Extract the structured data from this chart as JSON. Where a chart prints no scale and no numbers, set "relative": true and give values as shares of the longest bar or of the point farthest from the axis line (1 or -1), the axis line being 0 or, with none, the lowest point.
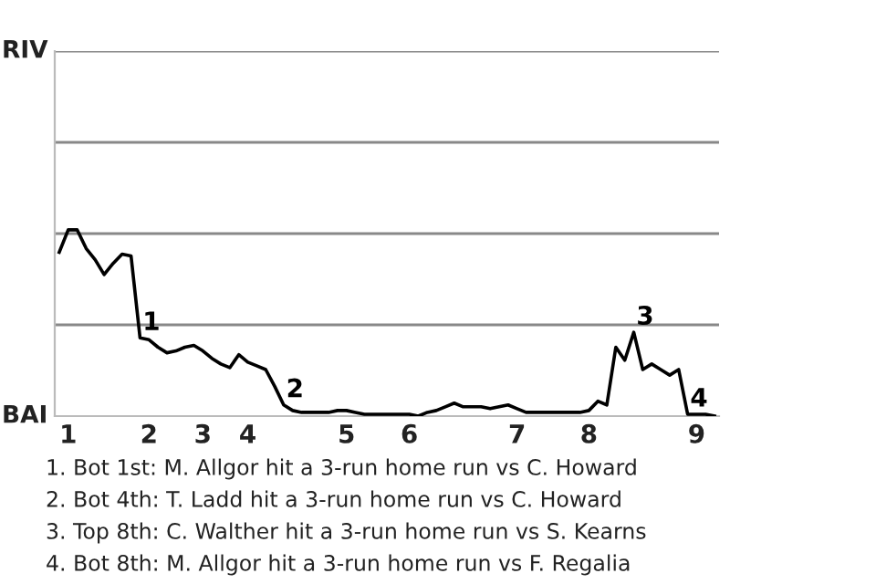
{
  "chart_data": {
    "type": "line",
    "relative": true,
    "categories": [
      null,
      "1",
      null,
      null,
      null,
      null,
      null,
      null,
      null,
      null,
      "2",
      null,
      null,
      null,
      null,
      null,
      "3",
      null,
      null,
      null,
      null,
      "4",
      null,
      null,
      null,
      null,
      null,
      null,
      null,
      null,
      null,
      null,
      "5",
      null,
      null,
      null,
      null,
      null,
      null,
      "6",
      null,
      null,
      null,
      null,
      null,
      null,
      null,
      null,
      null,
      null,
      null,
      "7",
      null,
      null,
      null,
      null,
      null,
      null,
      null,
      "8",
      null,
      null,
      null,
      null,
      null,
      null,
      null,
      null,
      null,
      null,
      null,
      "9",
      null,
      null
    ],
    "series": [
      {
        "color": "#000000",
        "values": [
          0.88,
          1,
          1,
          0.9,
          0.84,
          0.76,
          0.82,
          0.87,
          0.86,
          0.42,
          0.41,
          0.37,
          0.34,
          0.35,
          0.37,
          0.38,
          0.35,
          0.31,
          0.28,
          0.26,
          0.33,
          0.29,
          0.27,
          0.25,
          0.16,
          0.06,
          0.03,
          0.02,
          0.02,
          0.02,
          0.02,
          0.03,
          0.03,
          0.02,
          0.01,
          0.01,
          0.01,
          0.01,
          0.01,
          0.01,
          0,
          0.02,
          0.03,
          0.05,
          0.07,
          0.05,
          0.05,
          0.05,
          0.04,
          0.05,
          0.06,
          0.04,
          0.02,
          0.02,
          0.02,
          0.02,
          0.02,
          0.02,
          0.02,
          0.03,
          0.08,
          0.06,
          0.37,
          0.3,
          0.45,
          0.25,
          0.28,
          0.25,
          0.22,
          0.25,
          0.01,
          0.01,
          0.01,
          0
        ]
      }
    ],
    "ref_lines": [
      {
        "axis": "y",
        "value": 0.49,
        "color": "#888888"
      },
      {
        "axis": "y",
        "value": 0.98,
        "color": "#888888"
      },
      {
        "axis": "y",
        "value": 1.47,
        "color": "#888888"
      },
      {
        "axis": "y",
        "value": 1.96,
        "color": "#888888"
      }
    ],
    "marker": "none",
    "line_style": "solid",
    "annotations": [
      "RIV",
      "BAI",
      {
        "text": "1",
        "y": 0.42
      },
      {
        "text": "2",
        "y": 0.06
      },
      {
        "text": "3",
        "y": 0.45
      },
      {
        "text": "4",
        "y": 0.01
      },
      "1. Bot 1st: M. Allgor hit a 3-run home run vs C. Howard",
      "2. Bot 4th: T. Ladd hit a 3-run home run vs C. Howard",
      "3. Top 8th: C. Walther hit a 3-run home run vs S. Kearns",
      "4. Bot 8th: M. Allgor hit a 3-run home run vs F. Regalia"
    ]
  }
}
